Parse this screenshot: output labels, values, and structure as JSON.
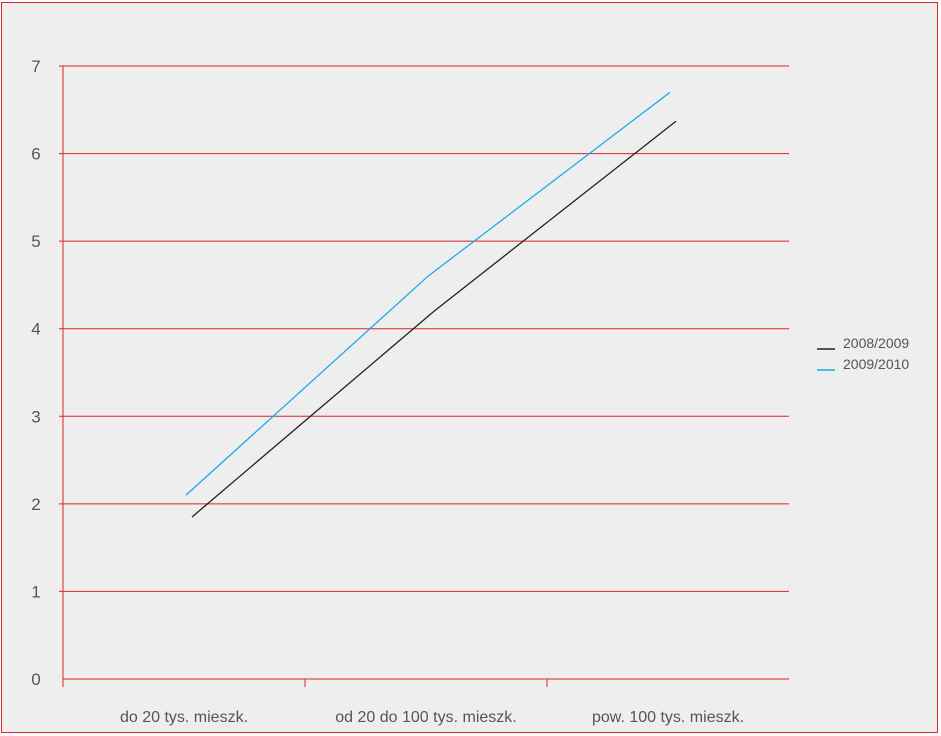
{
  "chart_data": {
    "type": "line",
    "categories": [
      "do 20 tys. mieszk.",
      "od 20 do 100 tys. mieszk.",
      "pow. 100 tys. mieszk."
    ],
    "series": [
      {
        "name": "2008/2009",
        "values": [
          1.85,
          4.2,
          6.37
        ],
        "color": "#222222"
      },
      {
        "name": "2009/2010",
        "values": [
          2.1,
          4.6,
          6.7
        ],
        "color": "#1eaae6"
      }
    ],
    "yticks": [
      0,
      1,
      2,
      3,
      4,
      5,
      6,
      7
    ],
    "ylim": [
      0,
      7
    ],
    "grid": true,
    "grid_color": "#d9232e",
    "axis_color": "#d9232e",
    "legend_position": "right",
    "title": "",
    "xlabel": "",
    "ylabel": ""
  }
}
